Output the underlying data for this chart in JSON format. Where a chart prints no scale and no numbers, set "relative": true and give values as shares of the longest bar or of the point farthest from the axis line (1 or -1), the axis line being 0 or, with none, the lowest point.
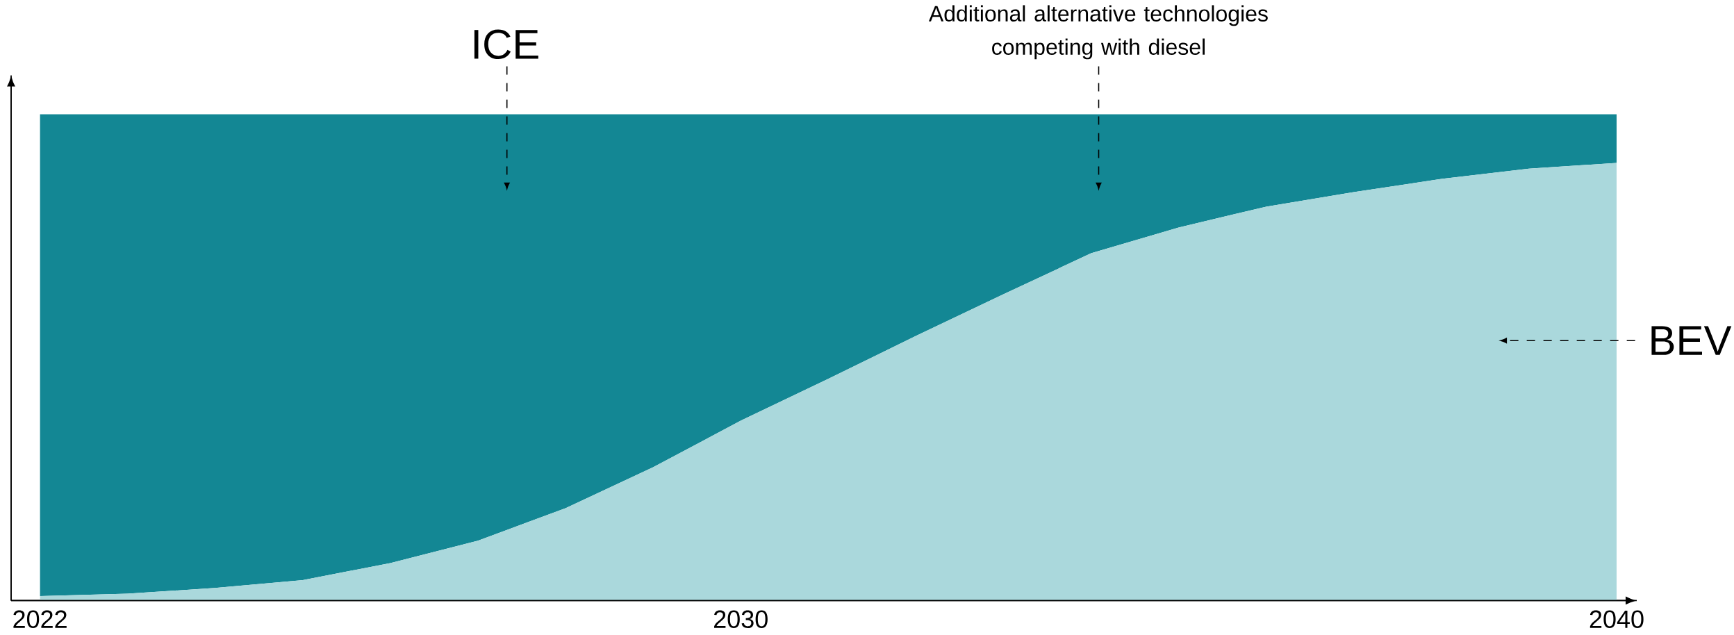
{
  "chart_data": {
    "type": "area",
    "stacked": true,
    "relative": true,
    "x": [
      2022,
      2023,
      2024,
      2025,
      2026,
      2027,
      2028,
      2029,
      2030,
      2031,
      2032,
      2033,
      2034,
      2035,
      2036,
      2037,
      2038,
      2039,
      2040
    ],
    "xlim": [
      2021.67,
      2040.23
    ],
    "xticks": [
      2022,
      2030,
      2040
    ],
    "series": [
      {
        "name": "BEV",
        "color": "#aad8dc",
        "values": [
          0.009,
          0.014,
          0.026,
          0.042,
          0.077,
          0.123,
          0.19,
          0.274,
          0.37,
          0.456,
          0.544,
          0.63,
          0.714,
          0.767,
          0.81,
          0.84,
          0.867,
          0.888,
          0.9
        ]
      },
      {
        "name": "ICE",
        "color": "#138794",
        "values": [
          0.991,
          0.986,
          0.974,
          0.958,
          0.923,
          0.877,
          0.81,
          0.726,
          0.63,
          0.544,
          0.456,
          0.37,
          0.286,
          0.233,
          0.19,
          0.16,
          0.133,
          0.112,
          0.1
        ]
      }
    ],
    "annotations": [
      "Additional alternative technologies competing with diesel"
    ]
  }
}
